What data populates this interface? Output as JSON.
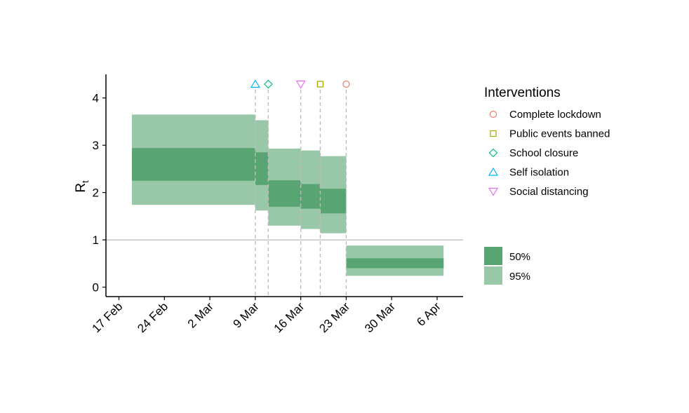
{
  "chart_data": {
    "type": "area",
    "ylabel": "R",
    "ylabel_subscript": "t",
    "ylim": [
      -0.2,
      4.5
    ],
    "yticks": [
      0,
      1,
      2,
      3,
      4
    ],
    "reference_line": 1,
    "x_start": "2020-02-15",
    "x_end": "2020-04-10",
    "xticks": [
      {
        "date": "2020-02-17",
        "label": "17 Feb"
      },
      {
        "date": "2020-02-24",
        "label": "24 Feb"
      },
      {
        "date": "2020-03-02",
        "label": "2 Mar"
      },
      {
        "date": "2020-03-09",
        "label": "9 Mar"
      },
      {
        "date": "2020-03-16",
        "label": "16 Mar"
      },
      {
        "date": "2020-03-23",
        "label": "23 Mar"
      },
      {
        "date": "2020-03-30",
        "label": "30 Mar"
      },
      {
        "date": "2020-04-06",
        "label": "6 Apr"
      }
    ],
    "segments": [
      {
        "start": "2020-02-19",
        "end": "2020-03-09",
        "lower_95": 1.74,
        "upper_95": 3.65,
        "lower_50": 2.25,
        "upper_50": 2.94
      },
      {
        "start": "2020-03-09",
        "end": "2020-03-11",
        "lower_95": 1.62,
        "upper_95": 3.53,
        "lower_50": 2.16,
        "upper_50": 2.85
      },
      {
        "start": "2020-03-11",
        "end": "2020-03-16",
        "lower_95": 1.3,
        "upper_95": 2.93,
        "lower_50": 1.7,
        "upper_50": 2.26
      },
      {
        "start": "2020-03-16",
        "end": "2020-03-19",
        "lower_95": 1.23,
        "upper_95": 2.89,
        "lower_50": 1.66,
        "upper_50": 2.18
      },
      {
        "start": "2020-03-19",
        "end": "2020-03-23",
        "lower_95": 1.14,
        "upper_95": 2.77,
        "lower_50": 1.56,
        "upper_50": 2.08
      },
      {
        "start": "2020-03-23",
        "end": "2020-04-07",
        "lower_95": 0.24,
        "upper_95": 0.88,
        "lower_50": 0.4,
        "upper_50": 0.61
      }
    ],
    "interventions": [
      {
        "name": "Complete lockdown",
        "date": "2020-03-23",
        "shape": "circle",
        "color": "#f07b6a"
      },
      {
        "name": "Public events banned",
        "date": "2020-03-19",
        "shape": "square",
        "color": "#a3a500"
      },
      {
        "name": "School closure",
        "date": "2020-03-11",
        "shape": "diamond",
        "color": "#00bf7d"
      },
      {
        "name": "Self isolation",
        "date": "2020-03-09",
        "shape": "triangle-up",
        "color": "#00b0f6"
      },
      {
        "name": "Social distancing",
        "date": "2020-03-16",
        "shape": "triangle-down",
        "color": "#e76bf3"
      }
    ],
    "legend_interventions_title": "Interventions",
    "legend_bands": [
      {
        "label": "50%",
        "color": "#58a472"
      },
      {
        "label": "95%",
        "color": "#98c8a7"
      }
    ],
    "legend_placement": "right",
    "grid": false
  }
}
